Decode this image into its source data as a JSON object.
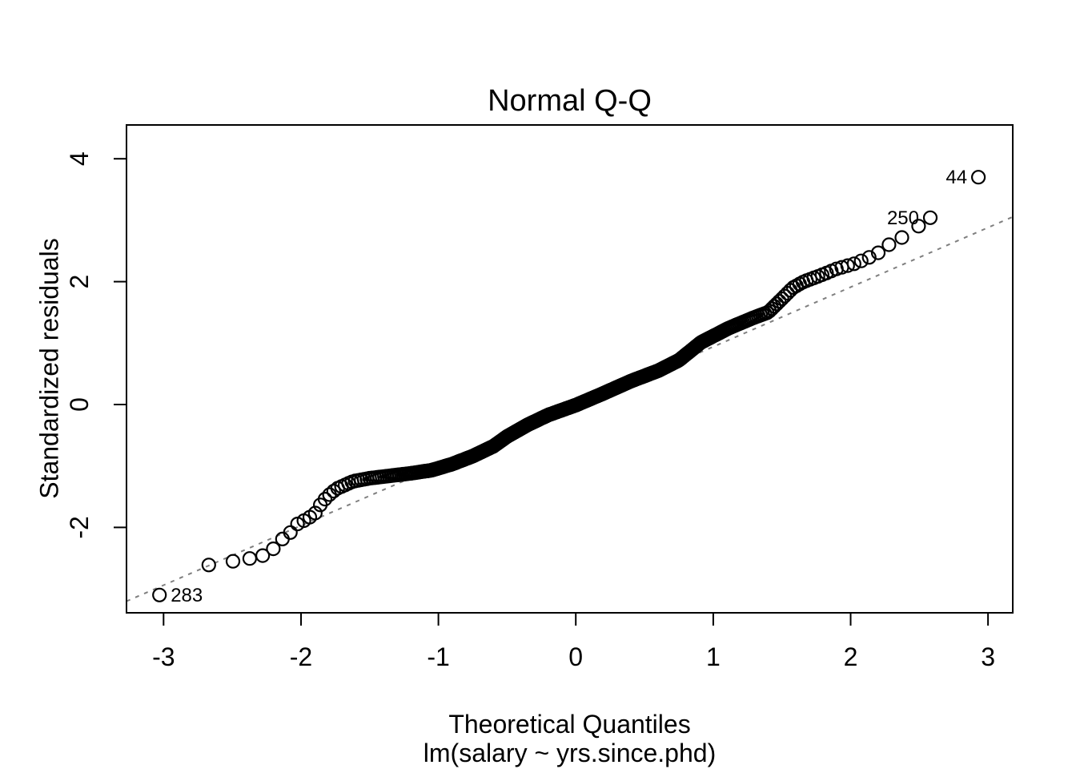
{
  "chart_data": {
    "type": "scatter",
    "subtype": "normal-qq-diagnostic",
    "title": "Normal Q-Q",
    "xlabel": "Theoretical Quantiles",
    "model_caption": "lm(salary ~ yrs.since.phd)",
    "ylabel": "Standardized residuals",
    "x_ticks": [
      -3,
      -2,
      -1,
      0,
      1,
      2,
      3
    ],
    "y_ticks": [
      -2,
      0,
      2,
      4
    ],
    "xlim": [
      -3.27,
      3.18
    ],
    "ylim": [
      -3.39,
      4.55
    ],
    "grid": false,
    "legend": "none",
    "n_points": 397,
    "marker": "open-circle",
    "colors": {
      "points": "#000000",
      "reference_line": "#7f7f7f",
      "background": "#ffffff",
      "frame": "#000000"
    },
    "reference_line": {
      "type": "qqline",
      "style": "dashed",
      "slope": 0.97,
      "intercept": -0.03
    },
    "labeled_points": [
      {
        "label": "44",
        "x": 2.93,
        "y": 3.7,
        "label_side": "left"
      },
      {
        "label": "250",
        "x": 2.58,
        "y": 3.04,
        "label_side": "left"
      },
      {
        "label": "283",
        "x": -3.03,
        "y": -3.1,
        "label_side": "right"
      }
    ],
    "curve_anchors": [
      [
        -3.03,
        -3.1
      ],
      [
        -2.67,
        -2.61
      ],
      [
        -2.49,
        -2.55
      ],
      [
        -2.38,
        -2.51
      ],
      [
        -2.28,
        -2.46
      ],
      [
        -2.22,
        -2.41
      ],
      [
        -2.16,
        -2.21
      ],
      [
        -2.1,
        -2.16
      ],
      [
        -2.04,
        -1.96
      ],
      [
        -1.96,
        -1.87
      ],
      [
        -1.9,
        -1.78
      ],
      [
        -1.85,
        -1.6
      ],
      [
        -1.8,
        -1.48
      ],
      [
        -1.74,
        -1.37
      ],
      [
        -1.68,
        -1.31
      ],
      [
        -1.62,
        -1.25
      ],
      [
        -1.5,
        -1.2
      ],
      [
        -1.35,
        -1.16
      ],
      [
        -1.2,
        -1.12
      ],
      [
        -1.05,
        -1.07
      ],
      [
        -0.9,
        -0.97
      ],
      [
        -0.75,
        -0.84
      ],
      [
        -0.6,
        -0.68
      ],
      [
        -0.5,
        -0.52
      ],
      [
        -0.35,
        -0.33
      ],
      [
        -0.2,
        -0.17
      ],
      [
        0.0,
        -0.01
      ],
      [
        0.2,
        0.18
      ],
      [
        0.4,
        0.38
      ],
      [
        0.6,
        0.55
      ],
      [
        0.75,
        0.72
      ],
      [
        0.85,
        0.9
      ],
      [
        0.91,
        1.01
      ],
      [
        1.11,
        1.24
      ],
      [
        1.29,
        1.41
      ],
      [
        1.4,
        1.5
      ],
      [
        1.5,
        1.72
      ],
      [
        1.58,
        1.9
      ],
      [
        1.66,
        2.0
      ],
      [
        1.78,
        2.1
      ],
      [
        1.9,
        2.21
      ],
      [
        2.04,
        2.3
      ],
      [
        2.12,
        2.38
      ],
      [
        2.19,
        2.45
      ],
      [
        2.29,
        2.62
      ],
      [
        2.4,
        2.75
      ],
      [
        2.58,
        3.04
      ],
      [
        2.93,
        3.7
      ]
    ]
  }
}
